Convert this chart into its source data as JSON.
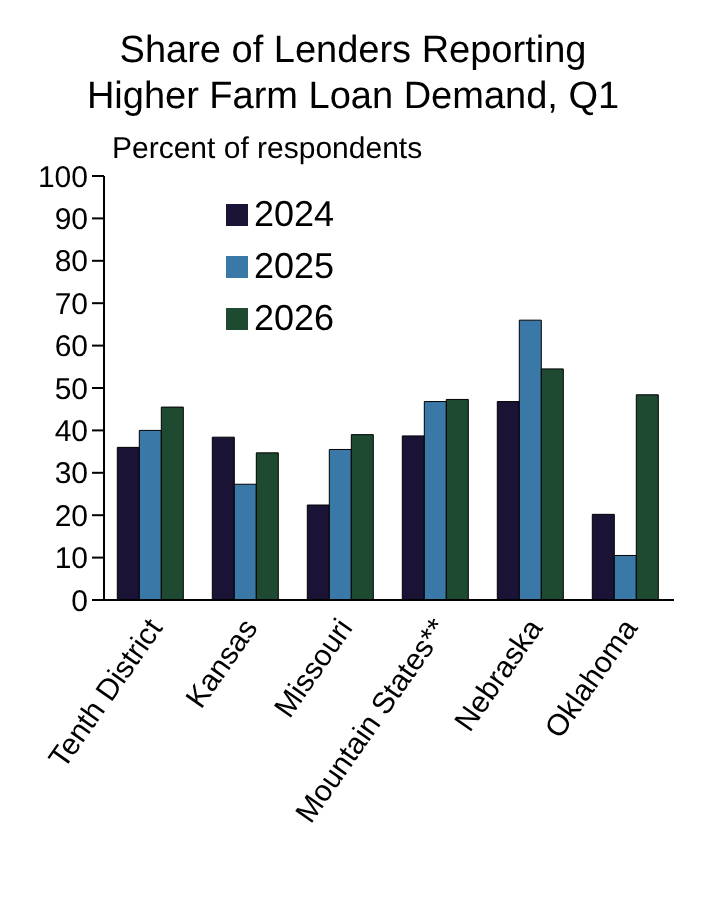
{
  "chart_data": {
    "type": "bar",
    "title": "Share of Lenders Reporting Higher Farm Loan Demand, Q1",
    "ylabel": "Percent of respondents",
    "categories": [
      "Tenth District",
      "Kansas",
      "Missouri",
      "Mountain States**",
      "Nebraska",
      "Oklahoma"
    ],
    "series": [
      {
        "name": "2024",
        "color": "#1a1336",
        "values": [
          36,
          38.4,
          22.4,
          38.7,
          46.8,
          20.2
        ]
      },
      {
        "name": "2025",
        "color": "#3a78a8",
        "values": [
          40,
          27.3,
          35.5,
          46.8,
          66,
          10.5
        ]
      },
      {
        "name": "2026",
        "color": "#1d4a30",
        "values": [
          45.5,
          34.7,
          39,
          47.3,
          54.5,
          48.4
        ]
      }
    ],
    "ylim": [
      0,
      100
    ],
    "yticks": [
      0,
      10,
      20,
      30,
      40,
      50,
      60,
      70,
      80,
      90,
      100
    ],
    "grid": false,
    "legend": "top"
  }
}
